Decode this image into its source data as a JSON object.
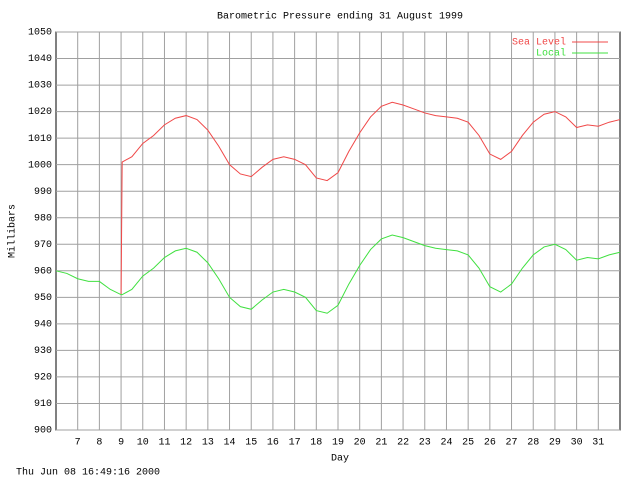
{
  "chart_data": {
    "type": "line",
    "title": "Barometric Pressure ending 31 August 1999",
    "x_label": "Day",
    "y_label": "Millibars",
    "timestamp": "Thu Jun 08 16:49:16 2000",
    "x": [
      6,
      6.5,
      7,
      7.5,
      8,
      8.5,
      9,
      9.05,
      9.5,
      10,
      10.5,
      11,
      11.5,
      12,
      12.5,
      13,
      13.5,
      14,
      14.5,
      15,
      15.5,
      16,
      16.5,
      17,
      17.5,
      18,
      18.5,
      19,
      19.5,
      20,
      20.5,
      21,
      21.5,
      22,
      22.5,
      23,
      23.5,
      24,
      24.5,
      25,
      25.5,
      26,
      26.5,
      27,
      27.5,
      28,
      28.5,
      29,
      29.5,
      30,
      30.5,
      31,
      31.5,
      32
    ],
    "series": [
      {
        "name": "Sea Level",
        "color": "#f04848",
        "values": [
          null,
          null,
          null,
          null,
          null,
          null,
          951,
          1001,
          1003,
          1008,
          1011,
          1015,
          1017.5,
          1018.5,
          1017,
          1013,
          1007,
          1000,
          996.5,
          995.5,
          999,
          1002,
          1003,
          1002,
          1000,
          995,
          994,
          997,
          1005,
          1012,
          1018,
          1022,
          1023.5,
          1022.5,
          1021,
          1019.5,
          1018.5,
          1018,
          1017.5,
          1016,
          1011,
          1004,
          1002,
          1005,
          1011,
          1016,
          1019,
          1020,
          1018,
          1014,
          1015,
          1014.5,
          1016,
          1017
        ]
      },
      {
        "name": "Local",
        "color": "#40e040",
        "values": [
          960,
          959,
          957,
          956,
          956,
          953,
          951,
          951,
          953,
          958,
          961,
          965,
          967.5,
          968.5,
          967,
          963,
          957,
          950,
          946.5,
          945.5,
          949,
          952,
          953,
          952,
          950,
          945,
          944,
          947,
          955,
          962,
          968,
          972,
          973.5,
          972.5,
          971,
          969.5,
          968.5,
          968,
          967.5,
          966,
          961,
          954,
          952,
          955,
          961,
          966,
          969,
          970,
          968,
          964,
          965,
          964.5,
          966,
          967
        ]
      }
    ],
    "xlim": [
      6,
      32
    ],
    "xticks": [
      7,
      8,
      9,
      10,
      11,
      12,
      13,
      14,
      15,
      16,
      17,
      18,
      19,
      20,
      21,
      22,
      23,
      24,
      25,
      26,
      27,
      28,
      29,
      30,
      31
    ],
    "ylim": [
      900,
      1050
    ],
    "yticks": [
      900,
      910,
      920,
      930,
      940,
      950,
      960,
      970,
      980,
      990,
      1000,
      1010,
      1020,
      1030,
      1040,
      1050
    ],
    "grid": true,
    "legend": "top-right"
  }
}
